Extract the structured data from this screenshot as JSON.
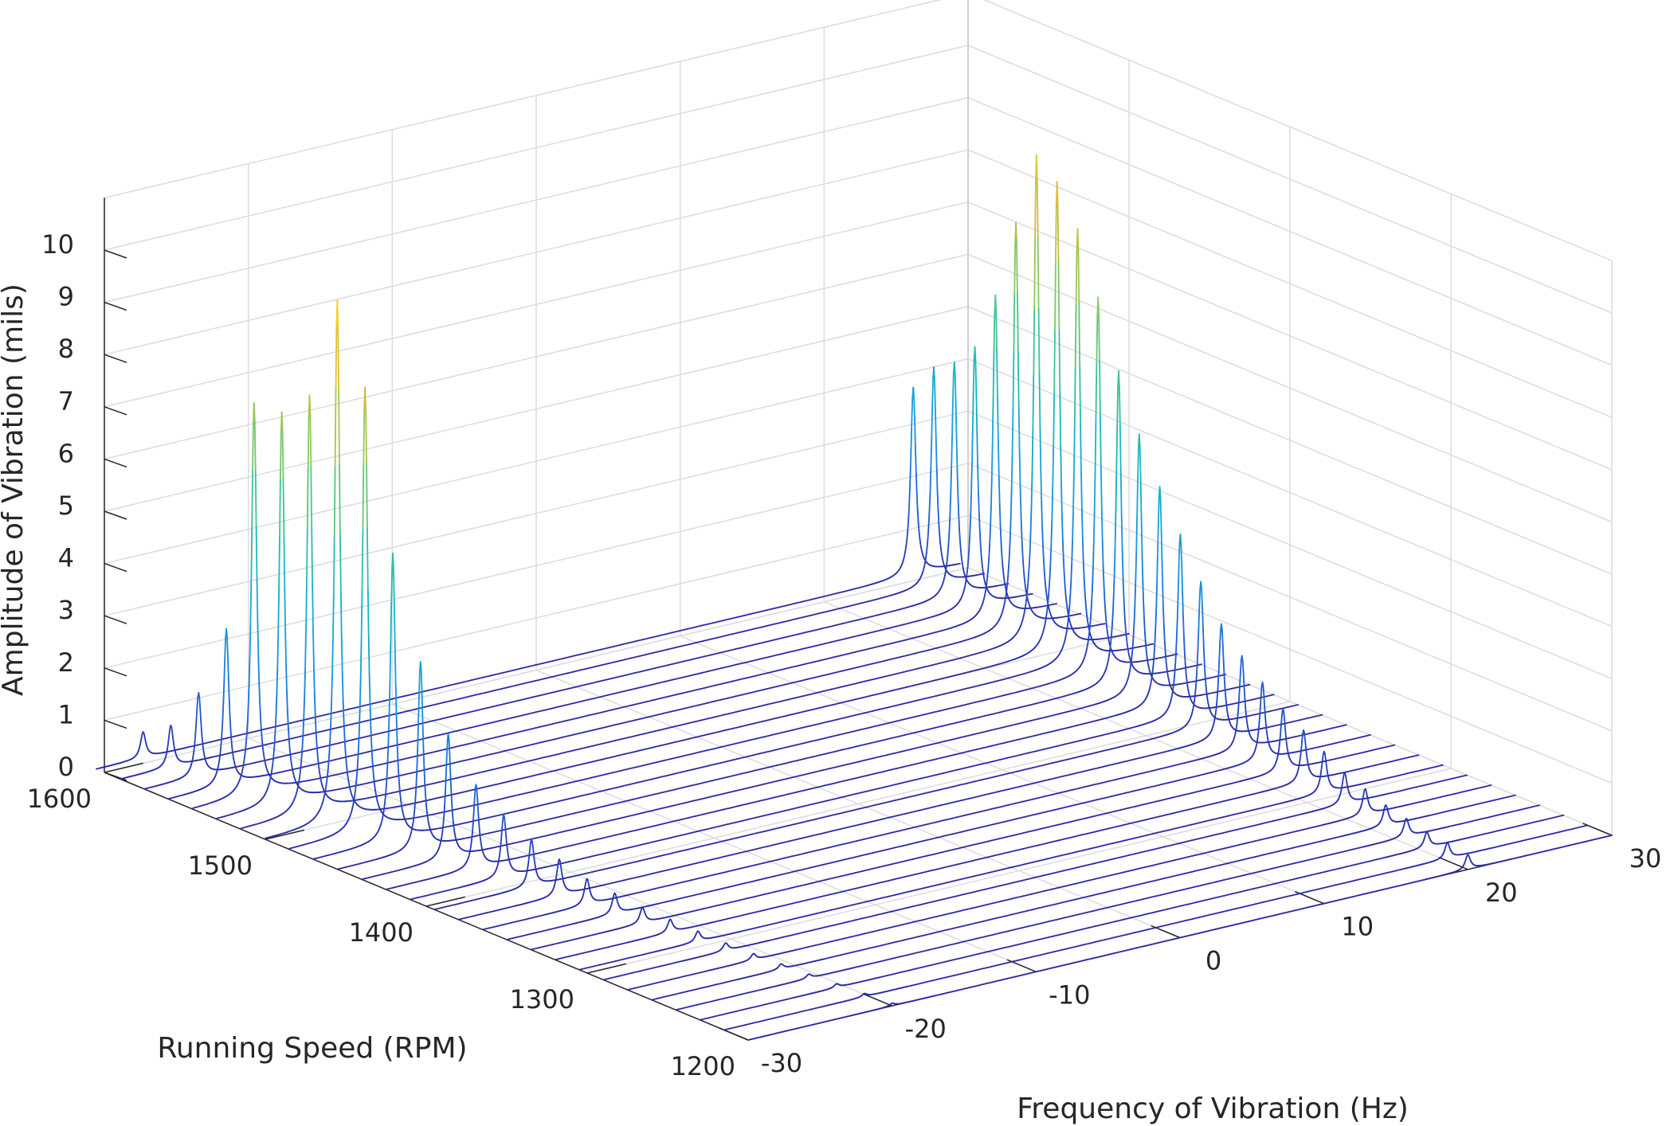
{
  "chart_data": {
    "type": "waterfall-3d",
    "x_axis": {
      "label": "Frequency of Vibration (Hz)",
      "range": [
        -30,
        30
      ],
      "ticks": [
        -30,
        -20,
        -10,
        0,
        10,
        20,
        30
      ],
      "tick_labels": [
        "-30",
        "-20",
        "-10",
        "0",
        "10",
        "20",
        "30"
      ]
    },
    "y_axis": {
      "label": "Running Speed (RPM)",
      "range": [
        1200,
        1600
      ],
      "ticks": [
        1200,
        1300,
        1400,
        1500,
        1600
      ],
      "tick_labels": [
        "1200",
        "1300",
        "1400",
        "1500",
        "1600"
      ]
    },
    "z_axis": {
      "label": "Amplitude of Vibration (mils)",
      "range": [
        0,
        11
      ],
      "ticks": [
        0,
        1,
        2,
        3,
        4,
        5,
        6,
        7,
        8,
        9,
        10
      ],
      "tick_labels": [
        "0",
        "1",
        "2",
        "3",
        "4",
        "5",
        "6",
        "7",
        "8",
        "9",
        "10"
      ]
    },
    "grid": true,
    "colormap": "parula",
    "colors": [
      "#2b2ba6",
      "#1f5fd6",
      "#1596e0",
      "#13b5c8",
      "#3fc48f",
      "#8fc95a",
      "#d9bb38",
      "#f5d821"
    ],
    "slices": [
      {
        "rpm": 1200,
        "f1": -20.0,
        "a1": 0.05,
        "f2": 20.0,
        "a2": 0.28
      },
      {
        "rpm": 1215,
        "f1": -20.25,
        "a1": 0.06,
        "f2": 20.25,
        "a2": 0.3
      },
      {
        "rpm": 1230,
        "f1": -20.5,
        "a1": 0.07,
        "f2": 20.5,
        "a2": 0.3
      },
      {
        "rpm": 1245,
        "f1": -20.75,
        "a1": 0.08,
        "f2": 20.75,
        "a2": 0.35
      },
      {
        "rpm": 1260,
        "f1": -21.0,
        "a1": 0.1,
        "f2": 21.0,
        "a2": 0.4
      },
      {
        "rpm": 1275,
        "f1": -21.25,
        "a1": 0.12,
        "f2": 21.25,
        "a2": 0.5
      },
      {
        "rpm": 1290,
        "f1": -21.5,
        "a1": 0.15,
        "f2": 21.5,
        "a2": 0.6
      },
      {
        "rpm": 1305,
        "f1": -21.75,
        "a1": 0.2,
        "f2": 21.75,
        "a2": 0.8
      },
      {
        "rpm": 1320,
        "f1": -22.0,
        "a1": 0.25,
        "f2": 22.0,
        "a2": 1.0
      },
      {
        "rpm": 1335,
        "f1": -22.25,
        "a1": 0.3,
        "f2": 22.25,
        "a2": 1.2
      },
      {
        "rpm": 1350,
        "f1": -22.5,
        "a1": 0.4,
        "f2": 22.5,
        "a2": 1.5
      },
      {
        "rpm": 1365,
        "f1": -22.75,
        "a1": 0.5,
        "f2": 22.75,
        "a2": 1.8
      },
      {
        "rpm": 1380,
        "f1": -23.0,
        "a1": 0.7,
        "f2": 23.0,
        "a2": 2.2
      },
      {
        "rpm": 1395,
        "f1": -23.25,
        "a1": 0.9,
        "f2": 23.25,
        "a2": 2.8
      },
      {
        "rpm": 1410,
        "f1": -23.5,
        "a1": 1.2,
        "f2": 23.5,
        "a2": 3.5
      },
      {
        "rpm": 1425,
        "f1": -23.75,
        "a1": 1.6,
        "f2": 23.75,
        "a2": 4.2
      },
      {
        "rpm": 1440,
        "f1": -24.0,
        "a1": 2.4,
        "f2": 24.0,
        "a2": 5.0
      },
      {
        "rpm": 1455,
        "f1": -24.25,
        "a1": 3.6,
        "f2": 24.25,
        "a2": 6.0
      },
      {
        "rpm": 1470,
        "f1": -24.5,
        "a1": 5.5,
        "f2": 24.5,
        "a2": 7.2
      },
      {
        "rpm": 1485,
        "f1": -24.75,
        "a1": 8.5,
        "f2": 24.75,
        "a2": 8.3
      },
      {
        "rpm": 1500,
        "f1": -25.0,
        "a1": 10.0,
        "f2": 25.0,
        "a2": 9.0
      },
      {
        "rpm": 1515,
        "f1": -25.25,
        "a1": 8.0,
        "f2": 25.25,
        "a2": 9.3
      },
      {
        "rpm": 1530,
        "f1": -25.5,
        "a1": 7.5,
        "f2": 25.5,
        "a2": 7.8
      },
      {
        "rpm": 1545,
        "f1": -25.75,
        "a1": 7.5,
        "f2": 25.75,
        "a2": 6.2
      },
      {
        "rpm": 1560,
        "f1": -26.0,
        "a1": 3.0,
        "f2": 26.0,
        "a2": 5.0
      },
      {
        "rpm": 1575,
        "f1": -26.25,
        "a1": 1.6,
        "f2": 26.25,
        "a2": 4.5
      },
      {
        "rpm": 1590,
        "f1": -26.5,
        "a1": 0.8,
        "f2": 26.5,
        "a2": 4.2
      },
      {
        "rpm": 1605,
        "f1": -26.75,
        "a1": 0.5,
        "f2": 26.75,
        "a2": 3.6
      }
    ]
  }
}
